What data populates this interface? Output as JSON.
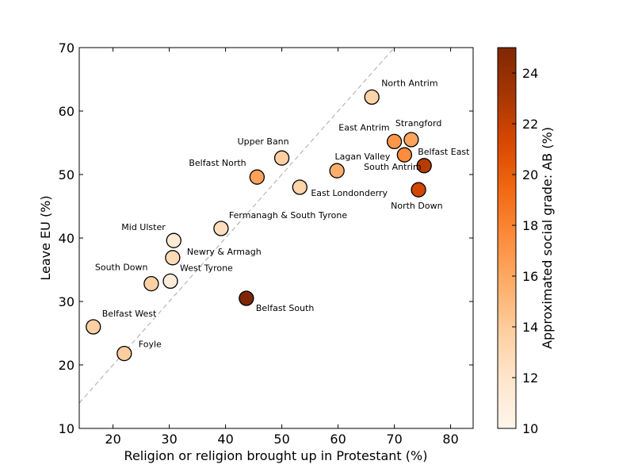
{
  "chart_data": {
    "type": "scatter",
    "xlabel": "Religion or religion brought up in Protestant (%)",
    "ylabel": "Leave EU (%)",
    "xlim": [
      14,
      84
    ],
    "ylim": [
      10,
      70
    ],
    "xticks": [
      20,
      30,
      40,
      50,
      60,
      70,
      80
    ],
    "yticks": [
      10,
      20,
      30,
      40,
      50,
      60,
      70
    ],
    "grid": false,
    "reference_line": {
      "style": "dashed",
      "slope": 1,
      "intercept": 0,
      "color": "#aaaaaa"
    },
    "colorbar": {
      "label": "Approximated social grade: AB (%)",
      "range": [
        10,
        25
      ],
      "ticks": [
        10,
        12,
        14,
        16,
        18,
        20,
        22,
        24
      ],
      "colormap": [
        "#fff5eb",
        "#fee6ce",
        "#fdd0a2",
        "#fdae6b",
        "#fd8d3c",
        "#f16913",
        "#d94801",
        "#a63603",
        "#7f2704"
      ],
      "colormap_name": "OrRd"
    },
    "points": [
      {
        "name": "North Antrim",
        "x": 66,
        "y": 62.2,
        "ab": 13.5
      },
      {
        "name": "East Antrim",
        "x": 70,
        "y": 55.2,
        "ab": 17.0
      },
      {
        "name": "Strangford",
        "x": 73,
        "y": 55.5,
        "ab": 16.2
      },
      {
        "name": "Belfast East",
        "x": 75.3,
        "y": 51.4,
        "ab": 22.5
      },
      {
        "name": "Lagan Valley",
        "x": 71.8,
        "y": 53.1,
        "ab": 17.5
      },
      {
        "name": "North Down",
        "x": 74.3,
        "y": 47.6,
        "ab": 21.5
      },
      {
        "name": "Upper Bann",
        "x": 50,
        "y": 52.6,
        "ab": 13.8
      },
      {
        "name": "South Antrim",
        "x": 59.8,
        "y": 50.6,
        "ab": 15.6
      },
      {
        "name": "Belfast North",
        "x": 45.6,
        "y": 49.6,
        "ab": 16.3
      },
      {
        "name": "East Londonderry",
        "x": 53.2,
        "y": 48,
        "ab": 13.5
      },
      {
        "name": "Fermanagh & South Tyrone",
        "x": 39.2,
        "y": 41.5,
        "ab": 12.6
      },
      {
        "name": "Mid Ulster",
        "x": 30.8,
        "y": 39.6,
        "ab": 11.4
      },
      {
        "name": "Newry & Armagh",
        "x": 30.6,
        "y": 36.9,
        "ab": 12.9
      },
      {
        "name": "South Down",
        "x": 26.8,
        "y": 32.8,
        "ab": 13.7
      },
      {
        "name": "West Tyrone",
        "x": 30.2,
        "y": 33.2,
        "ab": 11.1
      },
      {
        "name": "Belfast South",
        "x": 43.7,
        "y": 30.5,
        "ab": 25.0
      },
      {
        "name": "Belfast West",
        "x": 16.5,
        "y": 26,
        "ab": 13.8
      },
      {
        "name": "Foyle",
        "x": 22,
        "y": 21.8,
        "ab": 13.9
      }
    ]
  }
}
